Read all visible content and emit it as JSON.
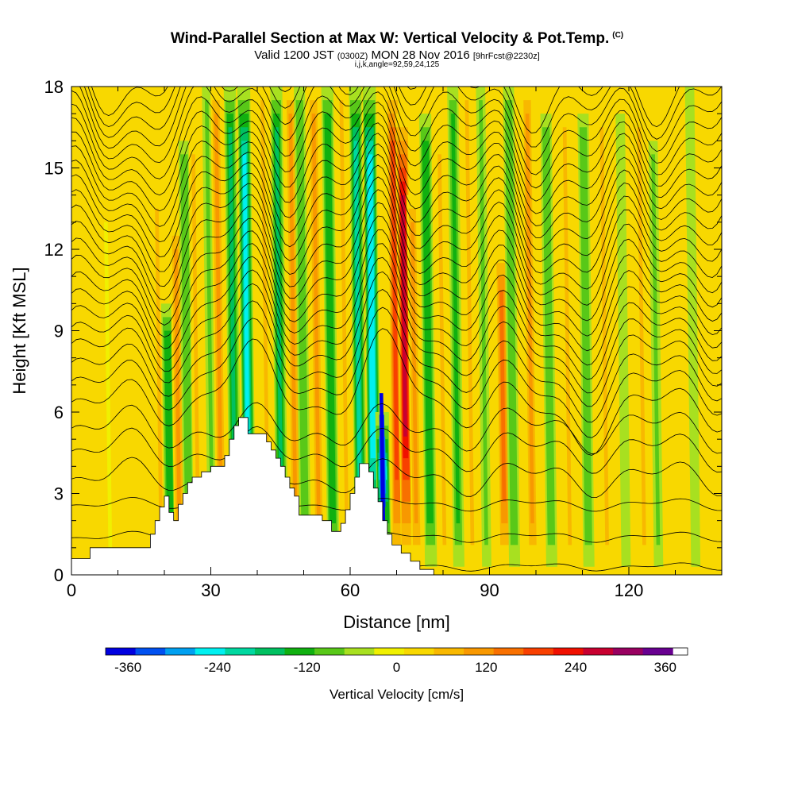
{
  "chart_data": {
    "type": "heatmap",
    "title": "Wind-Parallel Section at Max W: Vertical Velocity & Pot.Temp.",
    "title_mark": "(C)",
    "subtitle_valid": "Valid 1200 JST",
    "subtitle_zulu": "(0300Z)",
    "subtitle_date": "MON 28 Nov 2016",
    "subtitle_fcst": "[9hrFcst@2230z]",
    "subtitle2": "i,j,k,angle=92,59,24,125",
    "xlabel": "Distance [nm]",
    "ylabel": "Height [Kft MSL]",
    "xlim": [
      0,
      140
    ],
    "ylim": [
      0,
      18
    ],
    "x_ticks": [
      "0",
      "30",
      "60",
      "90",
      "120"
    ],
    "y_ticks": [
      "0",
      "3",
      "6",
      "9",
      "12",
      "15",
      "18"
    ],
    "colorbar": {
      "label": "Vertical Velocity [cm/s]",
      "min": -390,
      "max": 390,
      "step": 40,
      "tick_labels": [
        "-360",
        "-240",
        "-120",
        "0",
        "120",
        "240",
        "360"
      ],
      "tick_values": [
        -360,
        -240,
        -120,
        0,
        120,
        240,
        360
      ],
      "colors": [
        "#0000e0",
        "#0050f0",
        "#00a0f0",
        "#00f0f0",
        "#00d8a0",
        "#00c060",
        "#10b010",
        "#58c818",
        "#a8e020",
        "#f0f000",
        "#f8d800",
        "#f8b800",
        "#f89800",
        "#f87000",
        "#f84000",
        "#f01000",
        "#c80030",
        "#980060",
        "#680090"
      ]
    },
    "vertical_velocity_bands": [
      {
        "x": 2,
        "w": 30,
        "top": 16
      },
      {
        "x": 8,
        "w": -25,
        "top": 13
      },
      {
        "x": 15,
        "w": 40,
        "top": 14
      },
      {
        "x": 19,
        "w": 60,
        "top": 14
      },
      {
        "x": 21,
        "w": -140,
        "top": 10
      },
      {
        "x": 23,
        "w": 90,
        "top": 13
      },
      {
        "x": 25,
        "w": -100,
        "top": 16
      },
      {
        "x": 27,
        "w": 70,
        "top": 16
      },
      {
        "x": 30,
        "w": -80,
        "top": 18
      },
      {
        "x": 32,
        "w": 110,
        "top": 18
      },
      {
        "x": 35,
        "w": -160,
        "top": 18
      },
      {
        "x": 38,
        "w": -240,
        "top": 18
      },
      {
        "x": 42,
        "w": 80,
        "top": 18
      },
      {
        "x": 45,
        "w": -160,
        "top": 18
      },
      {
        "x": 48,
        "w": 90,
        "top": 18
      },
      {
        "x": 50,
        "w": -110,
        "top": 18
      },
      {
        "x": 53,
        "w": 110,
        "top": 18
      },
      {
        "x": 56,
        "w": -130,
        "top": 18
      },
      {
        "x": 59,
        "w": 80,
        "top": 18
      },
      {
        "x": 62,
        "w": -200,
        "top": 18
      },
      {
        "x": 65,
        "w": -260,
        "top": 18
      },
      {
        "x": 67,
        "w": -360,
        "top": 6
      },
      {
        "x": 70,
        "w": 200,
        "top": 18
      },
      {
        "x": 72,
        "w": 260,
        "top": 17
      },
      {
        "x": 74,
        "w": 120,
        "top": 14
      },
      {
        "x": 77,
        "w": -130,
        "top": 17
      },
      {
        "x": 80,
        "w": 80,
        "top": 16
      },
      {
        "x": 83,
        "w": -120,
        "top": 18
      },
      {
        "x": 86,
        "w": 60,
        "top": 18
      },
      {
        "x": 89,
        "w": -80,
        "top": 18
      },
      {
        "x": 93,
        "w": 150,
        "top": 12
      },
      {
        "x": 95,
        "w": -90,
        "top": 18
      },
      {
        "x": 99,
        "w": 100,
        "top": 18
      },
      {
        "x": 103,
        "w": -110,
        "top": 17
      },
      {
        "x": 107,
        "w": 80,
        "top": 17
      },
      {
        "x": 111,
        "w": -90,
        "top": 17
      },
      {
        "x": 115,
        "w": 70,
        "top": 17
      },
      {
        "x": 119,
        "w": -70,
        "top": 17
      },
      {
        "x": 123,
        "w": 50,
        "top": 17
      },
      {
        "x": 126,
        "w": -80,
        "top": 16
      },
      {
        "x": 130,
        "w": 40,
        "top": 17
      },
      {
        "x": 134,
        "w": -50,
        "top": 18
      },
      {
        "x": 138,
        "w": 40,
        "top": 18
      }
    ],
    "terrain": [
      [
        0,
        0.6
      ],
      [
        4,
        0.6
      ],
      [
        4,
        1
      ],
      [
        17,
        1
      ],
      [
        17,
        1.5
      ],
      [
        18,
        1.5
      ],
      [
        18,
        2
      ],
      [
        19,
        2
      ],
      [
        19,
        2.5
      ],
      [
        20,
        2.5
      ],
      [
        20,
        2.9
      ],
      [
        21,
        2.9
      ],
      [
        21,
        2.3
      ],
      [
        22,
        2.3
      ],
      [
        22,
        2
      ],
      [
        23,
        2
      ],
      [
        23,
        2.6
      ],
      [
        24,
        2.6
      ],
      [
        24,
        3
      ],
      [
        25,
        3
      ],
      [
        25,
        3.4
      ],
      [
        26,
        3.4
      ],
      [
        26,
        3.6
      ],
      [
        28,
        3.6
      ],
      [
        28,
        3.8
      ],
      [
        30,
        3.8
      ],
      [
        30,
        4
      ],
      [
        33,
        4
      ],
      [
        33,
        4.4
      ],
      [
        34,
        4.4
      ],
      [
        34,
        5
      ],
      [
        35,
        5
      ],
      [
        35,
        5.5
      ],
      [
        36,
        5.5
      ],
      [
        36,
        5.8
      ],
      [
        38,
        5.8
      ],
      [
        38,
        5.2
      ],
      [
        42,
        5.2
      ],
      [
        42,
        4.9
      ],
      [
        43,
        4.9
      ],
      [
        43,
        4.6
      ],
      [
        44,
        4.6
      ],
      [
        44,
        4.3
      ],
      [
        45,
        4.3
      ],
      [
        45,
        4
      ],
      [
        46,
        4
      ],
      [
        46,
        3.6
      ],
      [
        47,
        3.6
      ],
      [
        47,
        3.2
      ],
      [
        48,
        3.2
      ],
      [
        48,
        2.9
      ],
      [
        49,
        2.9
      ],
      [
        49,
        2.2
      ],
      [
        54,
        2.2
      ],
      [
        54,
        2
      ],
      [
        56,
        2
      ],
      [
        56,
        1.6
      ],
      [
        58,
        1.6
      ],
      [
        58,
        1.9
      ],
      [
        59,
        1.9
      ],
      [
        59,
        2.4
      ],
      [
        60,
        2.4
      ],
      [
        60,
        3
      ],
      [
        61,
        3
      ],
      [
        61,
        3.6
      ],
      [
        62,
        3.6
      ],
      [
        62,
        4.1
      ],
      [
        64,
        4.1
      ],
      [
        64,
        3.8
      ],
      [
        65,
        3.8
      ],
      [
        65,
        3.2
      ],
      [
        66,
        3.2
      ],
      [
        66,
        2.7
      ],
      [
        67,
        2.7
      ],
      [
        67,
        2
      ],
      [
        68,
        2
      ],
      [
        68,
        1.5
      ],
      [
        69,
        1.5
      ],
      [
        69,
        1.1
      ],
      [
        71,
        1.1
      ],
      [
        71,
        0.8
      ],
      [
        73,
        0.8
      ],
      [
        73,
        0.5
      ],
      [
        75,
        0.5
      ],
      [
        75,
        0.2
      ],
      [
        78,
        0.2
      ],
      [
        78,
        0
      ],
      [
        140,
        0
      ]
    ],
    "theta_contours": {
      "count": 30,
      "base_heights_kft": [
        0.3,
        1.4,
        2.6,
        3.6,
        4.6,
        5.4,
        6.3,
        7.0,
        7.6,
        8.2,
        8.7,
        9.2,
        9.7,
        10.2,
        10.7,
        11.2,
        11.7,
        12.2,
        12.7,
        13.2,
        13.7,
        14.2,
        14.7,
        15.2,
        15.7,
        16.2,
        16.7,
        17.2,
        17.7,
        18.2
      ]
    }
  }
}
